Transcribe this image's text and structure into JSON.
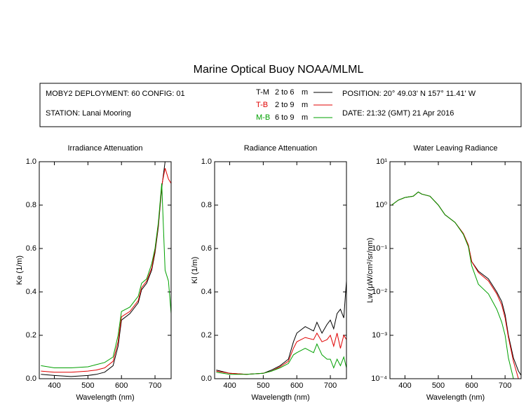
{
  "header": {
    "title": "Marine Optical Buoy NOAA/MLML",
    "deployment": "MOBY2 DEPLOYMENT: 60 CONFIG: 01",
    "station": "STATION: Lanai Mooring",
    "position": "POSITION: 20° 49.03' N   157° 11.41' W",
    "date": "DATE: 21:32 (GMT) 21 Apr 2016",
    "legend": [
      {
        "name": "T-M",
        "range": "2 to 6",
        "unit": "m",
        "color": "#000000"
      },
      {
        "name": "T-B",
        "range": "2 to 9",
        "unit": "m",
        "color": "#e00000"
      },
      {
        "name": "M-B",
        "range": "6 to 9",
        "unit": "m",
        "color": "#00a000"
      }
    ]
  },
  "chart_data": [
    {
      "type": "line",
      "title": "Irradiance Attenuation",
      "x_label": "Wavelength (nm)",
      "y_label": "Ke  (1/m)",
      "x": [
        360,
        400,
        450,
        500,
        525,
        550,
        575,
        590,
        600,
        625,
        650,
        660,
        675,
        690,
        700,
        710,
        720,
        730,
        740,
        748
      ],
      "series": [
        {
          "color": "#000000",
          "values": [
            0.02,
            0.015,
            0.01,
            0.015,
            0.02,
            0.03,
            0.06,
            0.15,
            0.27,
            0.3,
            0.35,
            0.41,
            0.44,
            0.5,
            0.58,
            0.7,
            0.88,
            1.0,
            1.0,
            1.0
          ]
        },
        {
          "color": "#e00000",
          "values": [
            0.035,
            0.03,
            0.03,
            0.035,
            0.04,
            0.05,
            0.08,
            0.17,
            0.285,
            0.31,
            0.36,
            0.42,
            0.45,
            0.51,
            0.59,
            0.71,
            0.89,
            0.97,
            0.92,
            0.9
          ]
        },
        {
          "color": "#00a000",
          "values": [
            0.06,
            0.05,
            0.05,
            0.055,
            0.065,
            0.075,
            0.1,
            0.2,
            0.31,
            0.33,
            0.38,
            0.44,
            0.46,
            0.53,
            0.6,
            0.72,
            0.9,
            0.5,
            0.45,
            0.3
          ]
        }
      ],
      "xlim": [
        355,
        748
      ],
      "ylim": [
        0,
        1
      ],
      "xticks": [
        400,
        500,
        600,
        700
      ],
      "yticks": [
        {
          "value": 0,
          "label": "0.0"
        },
        0.2,
        0.4,
        0.6,
        0.8,
        {
          "value": 1,
          "label": "1.0"
        }
      ],
      "yscale": "linear"
    },
    {
      "type": "line",
      "title": "Radiance Attenuation",
      "x_label": "Wavelength (nm)",
      "y_label": "Kl  (1/m)",
      "x": [
        360,
        400,
        450,
        500,
        525,
        550,
        575,
        590,
        600,
        625,
        650,
        660,
        675,
        690,
        700,
        710,
        720,
        730,
        740,
        748
      ],
      "series": [
        {
          "color": "#000000",
          "values": [
            0.04,
            0.025,
            0.02,
            0.025,
            0.04,
            0.06,
            0.09,
            0.17,
            0.21,
            0.24,
            0.22,
            0.26,
            0.21,
            0.25,
            0.27,
            0.23,
            0.3,
            0.32,
            0.28,
            0.45
          ]
        },
        {
          "color": "#e00000",
          "values": [
            0.035,
            0.025,
            0.02,
            0.025,
            0.035,
            0.055,
            0.08,
            0.14,
            0.17,
            0.19,
            0.18,
            0.21,
            0.17,
            0.18,
            0.2,
            0.15,
            0.21,
            0.14,
            0.2,
            0.18
          ]
        },
        {
          "color": "#00a000",
          "values": [
            0.03,
            0.02,
            0.02,
            0.025,
            0.035,
            0.05,
            0.07,
            0.11,
            0.12,
            0.14,
            0.12,
            0.16,
            0.11,
            0.09,
            0.09,
            0.05,
            0.09,
            0.06,
            0.1,
            0.05
          ]
        }
      ],
      "xlim": [
        355,
        748
      ],
      "ylim": [
        0,
        1
      ],
      "xticks": [
        400,
        500,
        600,
        700
      ],
      "yticks": [
        {
          "value": 0,
          "label": "0.0"
        },
        0.2,
        0.4,
        0.6,
        0.8,
        {
          "value": 1,
          "label": "1.0"
        }
      ],
      "yscale": "linear"
    },
    {
      "type": "line",
      "title": "Water Leaving Radiance",
      "x_label": "Wavelength (nm)",
      "y_label": "Lw  (μW/cm²/sr/nm)",
      "x": [
        360,
        380,
        400,
        425,
        440,
        450,
        475,
        500,
        520,
        550,
        575,
        590,
        600,
        620,
        650,
        675,
        690,
        700,
        710,
        725,
        740,
        748
      ],
      "series": [
        {
          "color": "#000000",
          "values": [
            1.0,
            1.3,
            1.5,
            1.6,
            2.0,
            1.8,
            1.6,
            1.0,
            0.6,
            0.4,
            0.22,
            0.12,
            0.05,
            0.03,
            0.02,
            0.01,
            0.006,
            0.003,
            0.001,
            0.0003,
            0.00015,
            0.00012
          ]
        },
        {
          "color": "#e00000",
          "values": [
            1.0,
            1.3,
            1.5,
            1.6,
            2.0,
            1.8,
            1.6,
            1.0,
            0.6,
            0.4,
            0.22,
            0.12,
            0.05,
            0.028,
            0.018,
            0.009,
            0.005,
            0.0025,
            0.0009,
            0.00025,
            0.0001,
            null
          ]
        },
        {
          "color": "#00a000",
          "values": [
            1.0,
            1.3,
            1.5,
            1.6,
            2.0,
            1.8,
            1.6,
            1.0,
            0.6,
            0.4,
            0.21,
            0.11,
            0.04,
            0.015,
            0.009,
            0.004,
            0.002,
            0.001,
            0.0003,
            0.0001,
            null,
            null
          ]
        }
      ],
      "xlim": [
        355,
        748
      ],
      "ylim": [
        0.0001,
        10
      ],
      "xticks": [
        400,
        500,
        600,
        700
      ],
      "yticks": [
        {
          "value": 10,
          "label": "10¹"
        },
        {
          "value": 1,
          "label": "10⁰"
        },
        {
          "value": 0.1,
          "label": "10⁻¹"
        },
        {
          "value": 0.01,
          "label": "10⁻²"
        },
        {
          "value": 0.001,
          "label": "10⁻³"
        },
        {
          "value": 0.0001,
          "label": "10⁻⁴"
        }
      ],
      "yscale": "log"
    }
  ]
}
